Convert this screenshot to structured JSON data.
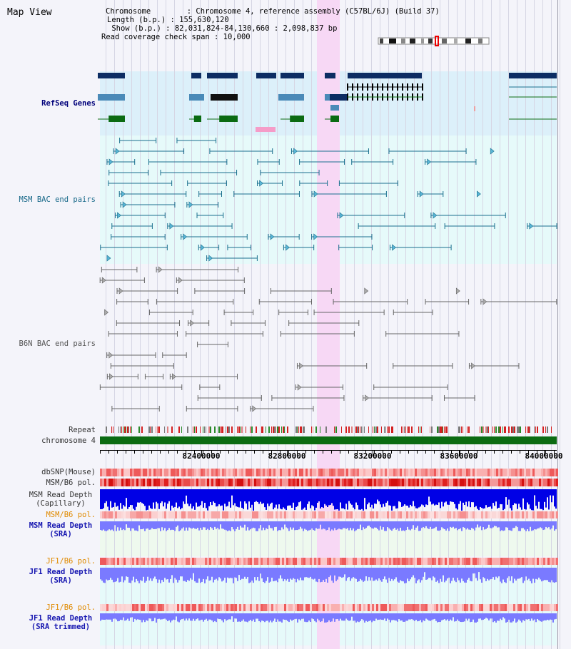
{
  "header": {
    "title": "Map View",
    "chromosome_line": "Chromosome        : Chromosome 4, reference assembly (C57BL/6J) (Build 37)",
    "length_line": "Length (b.p.) : 155,630,120",
    "show_line": " Show (b.p.) : 82,031,824-84,130,660 : 2,098,837 bp",
    "coverage_line": "Read coverage check span : 10,000"
  },
  "tracks": {
    "refseq": "RefSeq Genes",
    "msm_bac": "MSM BAC end pairs",
    "b6n_bac": "B6N BAC end pairs",
    "repeat": "Repeat",
    "chromosome": "chromosome 4",
    "dbsnp": "dbSNP(Mouse)",
    "msm_b6_pol_1": "MSM/B6 pol.",
    "msm_read_depth_cap_1": "MSM Read Depth",
    "msm_read_depth_cap_2": "(Capillary)",
    "msm_b6_pol_2": "MSM/B6 pol.",
    "msm_read_depth_sra_1": "MSM Read Depth",
    "msm_read_depth_sra_2": "(SRA)",
    "jf1_b6_pol_1": "JF1/B6 pol.",
    "jf1_read_depth_sra_1": "JF1 Read Depth",
    "jf1_read_depth_sra_2": "(SRA)",
    "jf1_b6_pol_2": "JF1/B6 pol.",
    "jf1_read_depth_trim_1": "JF1 Read Depth",
    "jf1_read_depth_trim_2": "(SRA trimmed)"
  },
  "axis": {
    "ticks": [
      "82400000",
      "82800000",
      "83200000",
      "83600000",
      "84000000"
    ]
  },
  "colors": {
    "refseq_bg": "#dcf0fa",
    "bac_bg": "#e6fafa",
    "highlight": "#f7d8f5",
    "gene_dark": "#0c2d63",
    "gene_mid": "#4a8ab8",
    "gene_green": "#0b6b12",
    "msm_pair": "#1a6f8e",
    "b6n_pair": "#666666",
    "chromosome": "#0b6b12",
    "depth_blue": "#0000e6",
    "depth_light": "#7a7aff"
  }
}
